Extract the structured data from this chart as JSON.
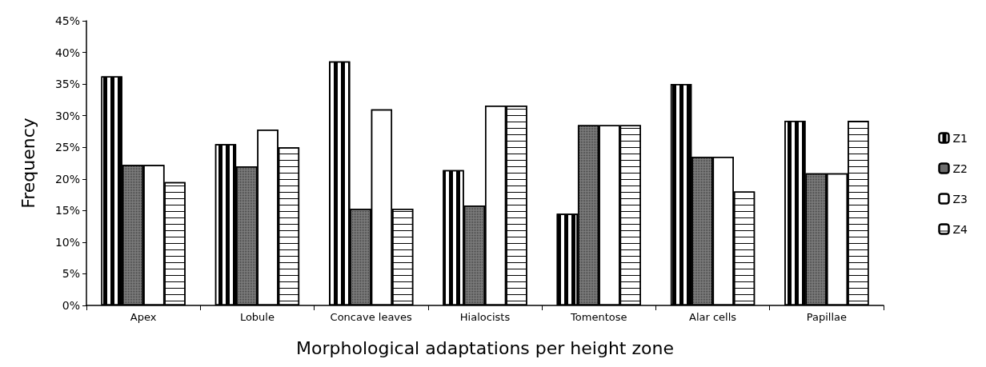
{
  "chart_data": {
    "type": "bar",
    "xlabel": "Morphological adaptations per height zone",
    "ylabel": "Frequency",
    "categories": [
      "Apex",
      "Lobule",
      "Concave leaves",
      "Hialocists",
      "Tomentose",
      "Alar cells",
      "Papillae"
    ],
    "series": [
      {
        "name": "Z1",
        "color": "#ffffff",
        "values": [
          36.2,
          25.5,
          38.6,
          21.4,
          14.5,
          35,
          29.2
        ]
      },
      {
        "name": "Z2",
        "color": "#808080",
        "values": [
          22.2,
          22,
          15.3,
          15.8,
          28.5,
          23.5,
          20.9
        ]
      },
      {
        "name": "Z3",
        "color": "#ffffff",
        "values": [
          22.2,
          27.8,
          31,
          31.6,
          28.5,
          23.5,
          20.9
        ]
      },
      {
        "name": "Z4",
        "color": "#ffffff",
        "values": [
          19.5,
          25,
          15.3,
          31.6,
          28.5,
          18,
          29.2
        ]
      }
    ],
    "ylim": [
      0,
      45
    ],
    "yticks": [
      {
        "value": 0,
        "label": "0%"
      },
      {
        "value": 5,
        "label": "5%"
      },
      {
        "value": 10,
        "label": "10%"
      },
      {
        "value": 15,
        "label": "15%"
      },
      {
        "value": 20,
        "label": "20%"
      },
      {
        "value": 25,
        "label": "25%"
      },
      {
        "value": 30,
        "label": "30%"
      },
      {
        "value": 35,
        "label": "35%"
      },
      {
        "value": 40,
        "label": "40%"
      },
      {
        "value": 45,
        "label": "45%"
      }
    ],
    "grid": false,
    "legend": "right"
  }
}
